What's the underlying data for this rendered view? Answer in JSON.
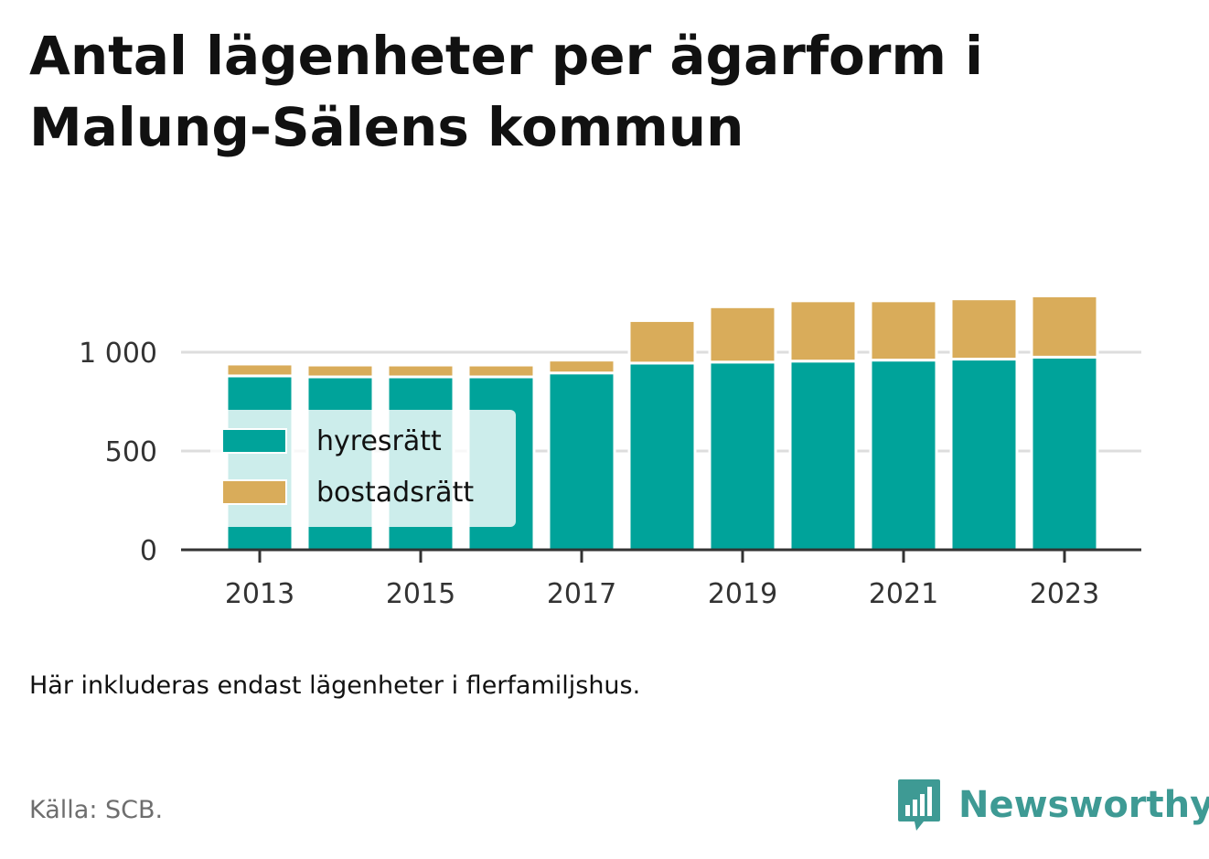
{
  "title": "Antal lägenheter per ägarform i Malung-Sälens kommun",
  "note": "Här inkluderas endast lägenheter i flerfamiljshus.",
  "source": "Källa: SCB.",
  "brand": {
    "name": "Newsworthy",
    "icon": "newsworthy-logo-icon",
    "color": "#3e9a94"
  },
  "chart_data": {
    "type": "bar",
    "stacked": true,
    "categories": [
      "2013",
      "2014",
      "2015",
      "2016",
      "2017",
      "2018",
      "2019",
      "2020",
      "2021",
      "2022",
      "2023"
    ],
    "x_tick_labels": [
      "2013",
      "2015",
      "2017",
      "2019",
      "2021",
      "2023"
    ],
    "series": [
      {
        "name": "hyresrätt",
        "color": "#00a39a",
        "values": [
          880,
          875,
          875,
          875,
          895,
          945,
          950,
          955,
          960,
          965,
          975
        ]
      },
      {
        "name": "bostadsrätt",
        "color": "#d9ac5a",
        "values": [
          60,
          60,
          60,
          60,
          65,
          215,
          280,
          305,
          300,
          305,
          310
        ]
      }
    ],
    "y_ticks": [
      {
        "value": 0,
        "label": "0"
      },
      {
        "value": 500,
        "label": "500"
      },
      {
        "value": 1000,
        "label": "1 000"
      }
    ],
    "ylim": [
      0,
      1300
    ],
    "xlabel": "",
    "ylabel": "",
    "grid": true,
    "legend_position": "bottom-left"
  }
}
